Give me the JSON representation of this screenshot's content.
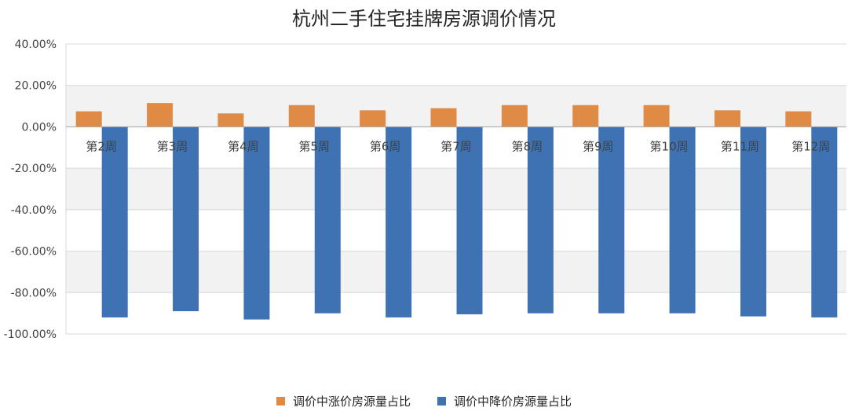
{
  "chart_data": {
    "type": "bar",
    "title": "杭州二手住宅挂牌房源调价情况",
    "categories": [
      "第2周",
      "第3周",
      "第4周",
      "第5周",
      "第6周",
      "第7周",
      "第8周",
      "第9周",
      "第10周",
      "第11周",
      "第12周"
    ],
    "series": [
      {
        "name": "调价中涨价房源量占比",
        "color": "#E08B45",
        "values": [
          7.5,
          11.5,
          6.5,
          10.5,
          8.0,
          9.0,
          10.5,
          10.5,
          10.5,
          8.0,
          7.5
        ]
      },
      {
        "name": "调价中降价房源量占比",
        "color": "#3F72B2",
        "values": [
          -92.0,
          -89.0,
          -93.0,
          -90.0,
          -92.0,
          -90.5,
          -90.0,
          -90.0,
          -90.0,
          -91.5,
          -92.0
        ]
      }
    ],
    "ylim": [
      -100,
      40
    ],
    "yticks": [
      "40.00%",
      "20.00%",
      "0.00%",
      "-20.00%",
      "-40.00%",
      "-60.00%",
      "-80.00%",
      "-100.00%"
    ],
    "ytick_values": [
      40,
      20,
      0,
      -20,
      -40,
      -60,
      -80,
      -100
    ],
    "grid": true,
    "legend_position": "bottom"
  }
}
